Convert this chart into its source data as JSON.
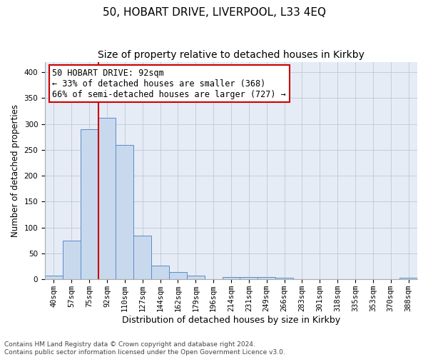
{
  "title1": "50, HOBART DRIVE, LIVERPOOL, L33 4EQ",
  "title2": "Size of property relative to detached houses in Kirkby",
  "xlabel": "Distribution of detached houses by size in Kirkby",
  "ylabel": "Number of detached properties",
  "categories": [
    "40sqm",
    "57sqm",
    "75sqm",
    "92sqm",
    "110sqm",
    "127sqm",
    "144sqm",
    "162sqm",
    "179sqm",
    "196sqm",
    "214sqm",
    "231sqm",
    "249sqm",
    "266sqm",
    "283sqm",
    "301sqm",
    "318sqm",
    "335sqm",
    "353sqm",
    "370sqm",
    "388sqm"
  ],
  "values": [
    7,
    75,
    290,
    312,
    260,
    85,
    26,
    14,
    7,
    0,
    5,
    4,
    4,
    3,
    0,
    0,
    0,
    0,
    0,
    0,
    3
  ],
  "bar_color": "#c8d9ee",
  "bar_edge_color": "#5b8cc8",
  "vline_index": 3,
  "vline_color": "#cc0000",
  "annotation_line1": "50 HOBART DRIVE: 92sqm",
  "annotation_line2": "← 33% of detached houses are smaller (368)",
  "annotation_line3": "66% of semi-detached houses are larger (727) →",
  "annotation_box_color": "white",
  "annotation_box_edge": "#cc0000",
  "ylim": [
    0,
    420
  ],
  "yticks": [
    0,
    50,
    100,
    150,
    200,
    250,
    300,
    350,
    400
  ],
  "grid_color": "#c0c8d8",
  "bg_color": "#e6ecf5",
  "footer": "Contains HM Land Registry data © Crown copyright and database right 2024.\nContains public sector information licensed under the Open Government Licence v3.0.",
  "title1_fontsize": 11,
  "title2_fontsize": 10,
  "xlabel_fontsize": 9,
  "ylabel_fontsize": 8.5,
  "tick_fontsize": 7.5,
  "annotation_fontsize": 8.5,
  "footer_fontsize": 6.5
}
